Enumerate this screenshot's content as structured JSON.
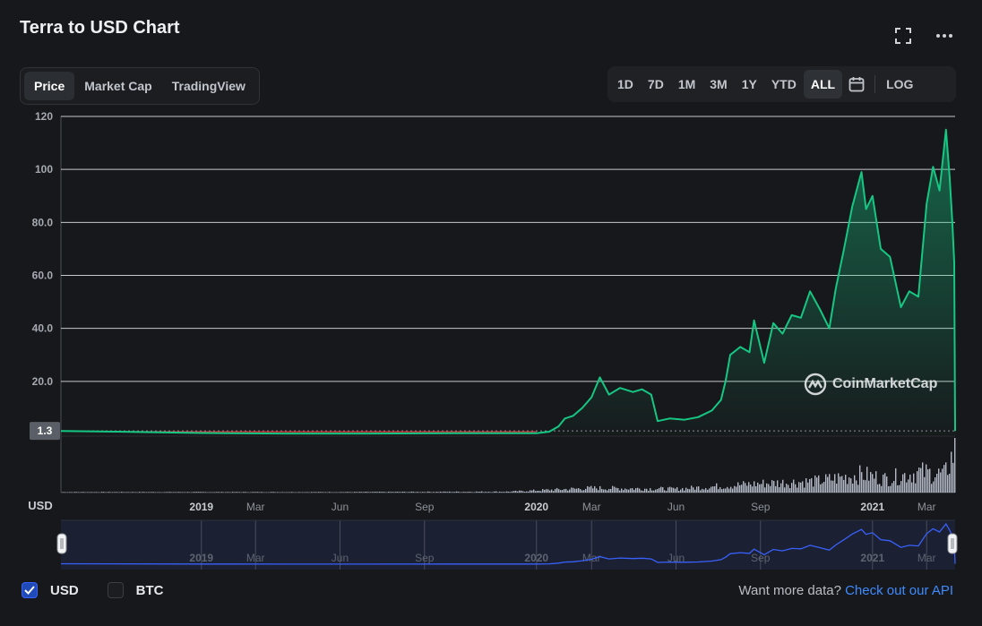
{
  "title": "Terra to USD Chart",
  "icons": {
    "fullscreen": "fullscreen-icon",
    "more": "more-icon",
    "calendar": "calendar-icon",
    "check": "check-icon",
    "watermark": "coinmarketcap-logo-icon"
  },
  "tabs": [
    {
      "label": "Price",
      "active": true
    },
    {
      "label": "Market Cap",
      "active": false
    },
    {
      "label": "TradingView",
      "active": false
    }
  ],
  "ranges": [
    {
      "label": "1D",
      "active": false
    },
    {
      "label": "7D",
      "active": false
    },
    {
      "label": "1M",
      "active": false
    },
    {
      "label": "3M",
      "active": false
    },
    {
      "label": "1Y",
      "active": false
    },
    {
      "label": "YTD",
      "active": false
    },
    {
      "label": "ALL",
      "active": true
    }
  ],
  "log_label": "LOG",
  "watermark": "CoinMarketCap",
  "currency_label": "USD",
  "legend": [
    {
      "label": "USD",
      "checked": true
    },
    {
      "label": "BTC",
      "checked": false
    }
  ],
  "api": {
    "prefix": "Want more data?",
    "link": "Check out our API"
  },
  "colors": {
    "line": "#16c784",
    "below_line": "#ea3943",
    "navigator": "#3861fb",
    "volume": "#cfd6e4",
    "current_label_bg": "#5a5e66"
  },
  "chart_data": {
    "type": "line",
    "ylim": [
      0,
      120
    ],
    "y_ticks": [
      "20.0",
      "40.0",
      "60.0",
      "80.0",
      "100",
      "120"
    ],
    "y_tick_values": [
      20,
      40,
      60,
      80,
      100,
      120
    ],
    "current_value": 1.3,
    "current_label": "1.3",
    "x_labels": [
      "2019",
      "Mar",
      "Jun",
      "Sep",
      "2020",
      "Mar",
      "Jun",
      "Sep",
      "2021",
      "Mar"
    ],
    "x_label_dates": [
      "2019-01-01",
      "2019-03-01",
      "2019-06-01",
      "2019-09-01",
      "2020-01-01",
      "2020-03-01",
      "2020-06-01",
      "2020-09-01",
      "2021-01-01",
      "2021-03-01"
    ],
    "x_range": [
      "2018-08-01",
      "2021-04-01"
    ],
    "series": [
      {
        "points": [
          [
            "2018-08-01",
            1.3
          ],
          [
            "2018-10-01",
            1.0
          ],
          [
            "2019-01-01",
            0.5
          ],
          [
            "2019-04-01",
            0.3
          ],
          [
            "2019-07-01",
            0.3
          ],
          [
            "2019-10-01",
            0.4
          ],
          [
            "2020-01-01",
            0.4
          ],
          [
            "2020-01-15",
            1.0
          ],
          [
            "2020-01-25",
            3.0
          ],
          [
            "2020-02-01",
            6.0
          ],
          [
            "2020-02-10",
            7.0
          ],
          [
            "2020-02-20",
            10.0
          ],
          [
            "2020-03-01",
            14.0
          ],
          [
            "2020-03-10",
            21.5
          ],
          [
            "2020-03-20",
            15.0
          ],
          [
            "2020-04-01",
            17.5
          ],
          [
            "2020-04-15",
            16.0
          ],
          [
            "2020-04-25",
            17.0
          ],
          [
            "2020-05-05",
            15.0
          ],
          [
            "2020-05-12",
            5.0
          ],
          [
            "2020-05-25",
            6.0
          ],
          [
            "2020-06-10",
            5.5
          ],
          [
            "2020-06-25",
            6.5
          ],
          [
            "2020-07-10",
            9.0
          ],
          [
            "2020-07-20",
            13.0
          ],
          [
            "2020-07-25",
            20.0
          ],
          [
            "2020-07-30",
            30.0
          ],
          [
            "2020-08-10",
            33.0
          ],
          [
            "2020-08-20",
            31.0
          ],
          [
            "2020-08-25",
            43.0
          ],
          [
            "2020-09-05",
            27.0
          ],
          [
            "2020-09-15",
            42.0
          ],
          [
            "2020-09-25",
            38.0
          ],
          [
            "2020-10-05",
            45.0
          ],
          [
            "2020-10-15",
            44.0
          ],
          [
            "2020-10-25",
            54.0
          ],
          [
            "2020-11-05",
            47.0
          ],
          [
            "2020-11-15",
            40.0
          ],
          [
            "2020-11-22",
            55.0
          ],
          [
            "2020-12-01",
            70.0
          ],
          [
            "2020-12-10",
            86.0
          ],
          [
            "2020-12-20",
            99.0
          ],
          [
            "2020-12-25",
            85.0
          ],
          [
            "2021-01-01",
            90.0
          ],
          [
            "2021-01-10",
            70.0
          ],
          [
            "2021-01-20",
            67.0
          ],
          [
            "2021-02-01",
            48.0
          ],
          [
            "2021-02-10",
            54.0
          ],
          [
            "2021-02-20",
            52.0
          ],
          [
            "2021-03-01",
            87.0
          ],
          [
            "2021-03-08",
            101.0
          ],
          [
            "2021-03-15",
            92.0
          ],
          [
            "2021-03-22",
            115.0
          ],
          [
            "2021-03-26",
            97.0
          ],
          [
            "2021-03-29",
            80.0
          ],
          [
            "2021-03-31",
            65.0
          ],
          [
            "2021-04-01",
            1.3
          ]
        ]
      }
    ],
    "volume": {
      "points": [
        [
          "2018-08-01",
          0.01
        ],
        [
          "2019-06-01",
          0.01
        ],
        [
          "2019-12-01",
          0.02
        ],
        [
          "2020-03-01",
          0.1
        ],
        [
          "2020-06-01",
          0.08
        ],
        [
          "2020-09-01",
          0.2
        ],
        [
          "2020-11-01",
          0.25
        ],
        [
          "2020-12-20",
          0.4
        ],
        [
          "2021-01-15",
          0.3
        ],
        [
          "2021-02-20",
          0.45
        ],
        [
          "2021-03-20",
          0.4
        ],
        [
          "2021-04-01",
          1.0
        ]
      ]
    }
  }
}
